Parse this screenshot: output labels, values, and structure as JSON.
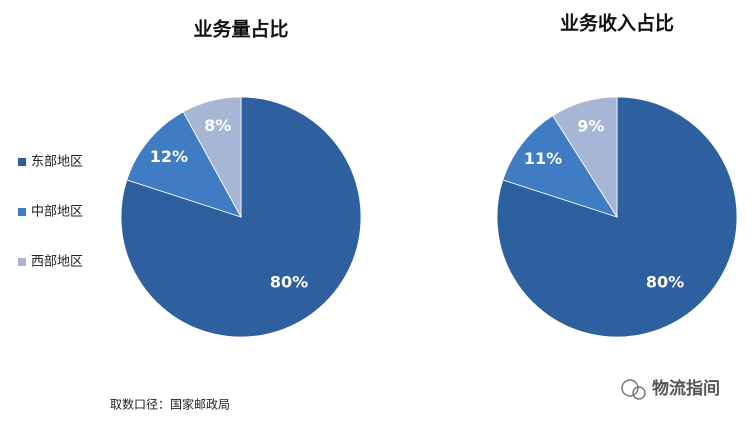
{
  "chart_data": [
    {
      "type": "pie",
      "title": "业务量占比",
      "categories": [
        "东部地区",
        "中部地区",
        "西部地区"
      ],
      "values": [
        80,
        12,
        8
      ],
      "value_labels": [
        "80%",
        "12%",
        "8%"
      ],
      "colors": [
        "#2e5f9e",
        "#3f7cc4",
        "#a7b6d4"
      ]
    },
    {
      "type": "pie",
      "title": "业务收入占比",
      "categories": [
        "东部地区",
        "中部地区",
        "西部地区"
      ],
      "values": [
        80,
        11,
        9
      ],
      "value_labels": [
        "80%",
        "11%",
        "9%"
      ],
      "colors": [
        "#2e5f9e",
        "#3f7cc4",
        "#a7b6d4"
      ]
    }
  ],
  "source": "取数口径：国家邮政局",
  "watermark": "物流指间"
}
